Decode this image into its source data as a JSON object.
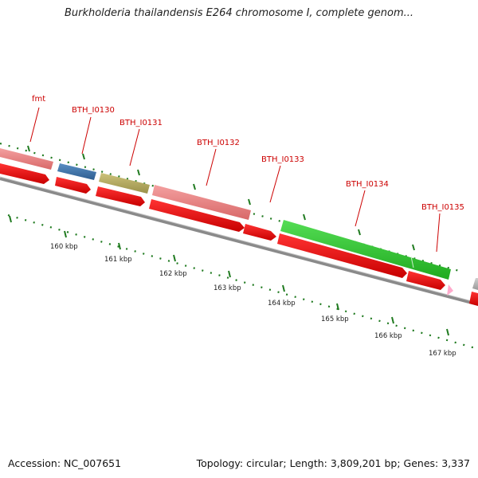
{
  "title": "Burkholderia thailandensis E264 chromosome I, complete genom...",
  "footer": {
    "accession": "Accession: NC_007651",
    "summary": "Topology: circular; Length: 3,809,201 bp; Genes: 3,337"
  },
  "colors": {
    "backbone": "#8a8a8a",
    "cds": "#ee1111",
    "label": "#cc0000",
    "tick": "#1f7a1f",
    "gene_pink": "#ee8888",
    "gene_blue": "#4477aa",
    "gene_olive": "#b8b060",
    "gene_green": "#33cc33",
    "gene_gray": "#bbbbbb",
    "gene_small_pink": "#ffaacc"
  },
  "gene_labels": [
    "fmt",
    "BTH_I0130",
    "BTH_I0131",
    "BTH_I0132",
    "BTH_I0133",
    "BTH_I0134",
    "BTH_I0135"
  ],
  "kbp_labels": [
    "160 kbp",
    "161 kbp",
    "162 kbp",
    "163 kbp",
    "164 kbp",
    "165 kbp",
    "166 kbp",
    "167 kbp"
  ]
}
